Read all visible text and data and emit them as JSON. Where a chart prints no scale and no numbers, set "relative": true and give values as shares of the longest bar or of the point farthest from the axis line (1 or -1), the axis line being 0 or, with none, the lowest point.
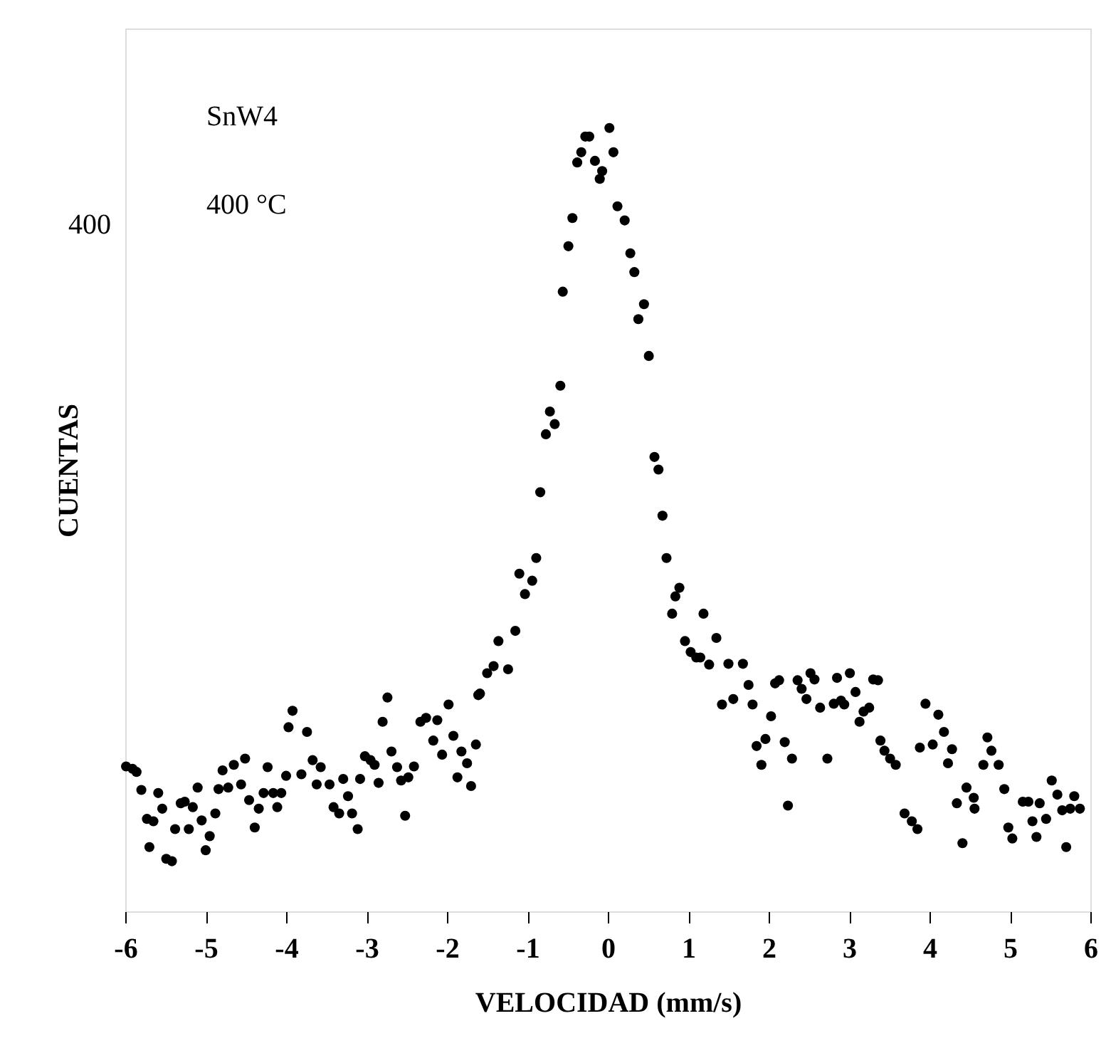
{
  "chart_data": {
    "type": "scatter",
    "xlabel": "VELOCIDAD (mm/s)",
    "ylabel": "CUENTAS",
    "annotations": [
      "SnW4",
      "400 °C",
      "400"
    ],
    "relative": true,
    "marker": "circle",
    "grid": false,
    "legend": false,
    "xlim": [
      -6,
      6
    ],
    "xticks": [
      -6,
      -5,
      -4,
      -3,
      -2,
      -1,
      0,
      1,
      2,
      3,
      4,
      5,
      6
    ],
    "series": [
      {
        "color": "#000000",
        "x": [
          -5.99,
          -5.91,
          -5.86,
          -5.8,
          -5.73,
          -5.65,
          -5.7,
          -5.59,
          -5.54,
          -5.49,
          -5.42,
          -5.38,
          -5.31,
          -5.26,
          -5.21,
          -5.16,
          -5.1,
          -5.05,
          -5.0,
          -4.95,
          -4.88,
          -4.84,
          -4.79,
          -4.72,
          -4.65,
          -4.56,
          -4.51,
          -4.46,
          -4.39,
          -4.34,
          -4.28,
          -4.23,
          -4.16,
          -4.11,
          -4.06,
          -4.0,
          -3.97,
          -3.92,
          -3.81,
          -3.74,
          -3.67,
          -3.62,
          -3.57,
          -3.46,
          -3.41,
          -3.34,
          -3.29,
          -3.23,
          -3.18,
          -3.11,
          -3.08,
          -3.02,
          -2.95,
          -2.9,
          -2.85,
          -2.8,
          -2.74,
          -2.69,
          -2.62,
          -2.57,
          -2.52,
          -2.48,
          -2.41,
          -2.33,
          -2.26,
          -2.17,
          -2.12,
          -2.06,
          -1.98,
          -1.92,
          -1.87,
          -1.82,
          -1.75,
          -1.7,
          -1.64,
          -1.61,
          -1.59,
          -1.5,
          -1.42,
          -1.24,
          -1.36,
          -1.15,
          -1.03,
          -0.94,
          -1.1,
          -0.89,
          -0.84,
          -0.77,
          -0.66,
          -0.72,
          -0.59,
          -0.56,
          -0.49,
          -0.44,
          -0.38,
          -0.33,
          -0.28,
          -0.23,
          -0.16,
          -0.07,
          -0.1,
          0.02,
          0.07,
          0.12,
          0.21,
          0.28,
          0.33,
          0.45,
          0.38,
          0.51,
          0.58,
          0.63,
          0.68,
          0.73,
          0.89,
          0.84,
          0.8,
          1.19,
          0.96,
          1.03,
          1.35,
          1.15,
          1.26,
          1.5,
          1.1,
          1.68,
          1.75,
          1.8,
          1.42,
          1.56,
          2.03,
          1.85,
          1.96,
          1.91,
          2.2,
          2.29,
          2.24,
          2.08,
          2.13,
          2.36,
          2.41,
          2.47,
          2.52,
          2.57,
          2.64,
          2.73,
          2.81,
          2.85,
          2.9,
          2.94,
          3.01,
          3.08,
          3.13,
          3.18,
          3.25,
          3.3,
          3.36,
          3.39,
          3.44,
          3.51,
          3.58,
          3.69,
          3.78,
          3.85,
          3.95,
          4.11,
          4.18,
          3.88,
          4.04,
          4.28,
          4.23,
          4.34,
          4.41,
          4.46,
          4.55,
          4.56,
          4.67,
          4.72,
          4.77,
          4.86,
          4.93,
          4.98,
          5.03,
          5.16,
          5.23,
          5.28,
          5.33,
          5.37,
          5.45,
          5.52,
          5.59,
          5.65,
          5.7,
          5.75,
          5.8,
          5.87
        ],
        "values": [
          0.185,
          0.182,
          0.178,
          0.155,
          0.118,
          0.115,
          0.082,
          0.151,
          0.131,
          0.067,
          0.064,
          0.105,
          0.138,
          0.14,
          0.105,
          0.133,
          0.158,
          0.116,
          0.078,
          0.096,
          0.125,
          0.156,
          0.18,
          0.158,
          0.187,
          0.162,
          0.195,
          0.142,
          0.107,
          0.131,
          0.151,
          0.184,
          0.151,
          0.133,
          0.151,
          0.173,
          0.235,
          0.256,
          0.175,
          0.229,
          0.193,
          0.162,
          0.184,
          0.162,
          0.133,
          0.125,
          0.169,
          0.147,
          0.125,
          0.105,
          0.169,
          0.198,
          0.193,
          0.187,
          0.164,
          0.242,
          0.273,
          0.204,
          0.184,
          0.167,
          0.122,
          0.171,
          0.185,
          0.242,
          0.247,
          0.218,
          0.244,
          0.2,
          0.264,
          0.224,
          0.171,
          0.204,
          0.189,
          0.16,
          0.213,
          0.276,
          0.278,
          0.304,
          0.313,
          0.309,
          0.345,
          0.358,
          0.405,
          0.422,
          0.431,
          0.451,
          0.535,
          0.609,
          0.622,
          0.638,
          0.671,
          0.791,
          0.849,
          0.885,
          0.956,
          0.969,
          0.989,
          0.989,
          0.958,
          0.945,
          0.935,
          1.0,
          0.969,
          0.9,
          0.882,
          0.84,
          0.816,
          0.775,
          0.756,
          0.709,
          0.58,
          0.564,
          0.505,
          0.451,
          0.413,
          0.402,
          0.38,
          0.38,
          0.345,
          0.331,
          0.349,
          0.324,
          0.315,
          0.316,
          0.324,
          0.316,
          0.289,
          0.264,
          0.264,
          0.271,
          0.249,
          0.211,
          0.22,
          0.187,
          0.216,
          0.195,
          0.135,
          0.291,
          0.295,
          0.295,
          0.284,
          0.271,
          0.304,
          0.296,
          0.26,
          0.195,
          0.265,
          0.298,
          0.269,
          0.264,
          0.304,
          0.28,
          0.242,
          0.255,
          0.26,
          0.296,
          0.295,
          0.218,
          0.205,
          0.195,
          0.187,
          0.125,
          0.115,
          0.105,
          0.265,
          0.251,
          0.229,
          0.209,
          0.213,
          0.207,
          0.189,
          0.138,
          0.087,
          0.158,
          0.145,
          0.131,
          0.187,
          0.222,
          0.205,
          0.187,
          0.156,
          0.107,
          0.093,
          0.14,
          0.14,
          0.115,
          0.095,
          0.138,
          0.118,
          0.167,
          0.149,
          0.129,
          0.082,
          0.131,
          0.147,
          0.131
        ]
      }
    ]
  }
}
